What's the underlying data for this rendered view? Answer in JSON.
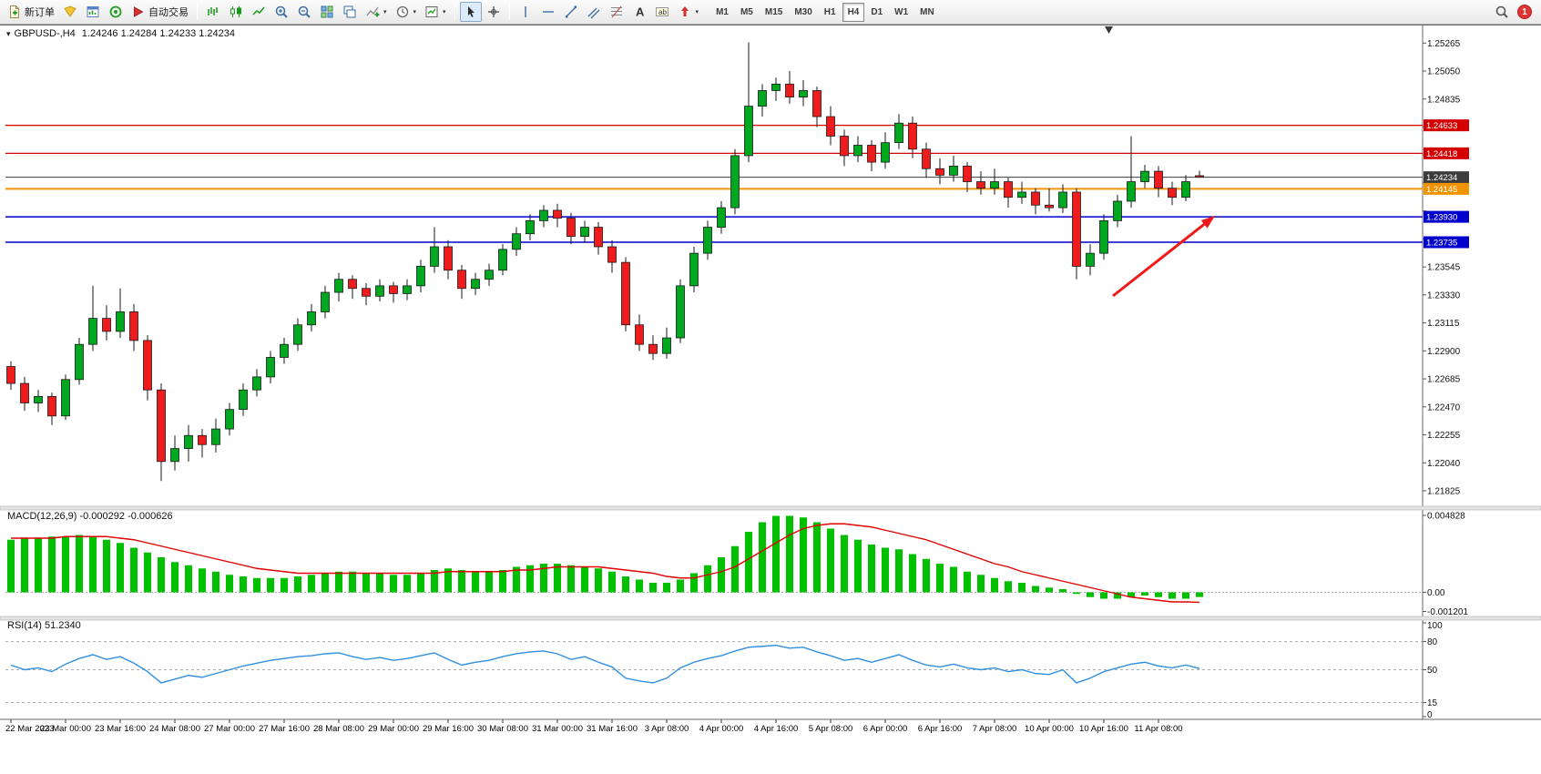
{
  "toolbar": {
    "new_order": "新订单",
    "auto_trading": "自动交易",
    "timeframes": [
      "M1",
      "M5",
      "M15",
      "M30",
      "H1",
      "H4",
      "D1",
      "W1",
      "MN"
    ],
    "active_timeframe": "H4",
    "notification_count": "1",
    "icons": [
      "new-order-icon",
      "metaeditor-icon",
      "market-watch-icon",
      "experts-icon",
      "autotrading-icon",
      "bars-chart-icon",
      "candles-chart-icon",
      "line-chart-icon",
      "zoom-in-icon",
      "zoom-out-icon",
      "tile-windows-icon",
      "cascade-windows-icon",
      "indicators-icon",
      "periods-icon",
      "templates-icon",
      "cursor-icon",
      "crosshair-icon",
      "vertical-line-icon",
      "horizontal-line-icon",
      "trendline-icon",
      "channel-icon",
      "fibonacci-icon",
      "text-icon",
      "label-icon",
      "arrows-icon",
      "search-icon"
    ]
  },
  "chart": {
    "symbol_period": "GBPUSD-,H4",
    "ohlc": "1.24246 1.24284 1.24233 1.24234"
  },
  "indicators": {
    "macd_label": "MACD(12,26,9) -0.000292 -0.000626",
    "rsi_label": "RSI(14) 51.2340"
  },
  "chart_data": {
    "type": "candlestick",
    "symbol": "GBPUSD-",
    "timeframe": "H4",
    "colors": {
      "up": "#00a820",
      "down": "#ee1c1c",
      "wick": "#1a1a1a",
      "macd_hist": "#00c000",
      "macd_signal": "#e00000",
      "rsi": "#2f8fe0",
      "line_red": "#d40000",
      "line_blue": "#0000cd",
      "line_orange": "#f29400",
      "line_bid": "#3c3c3c",
      "arrow": "#f01818"
    },
    "price_axis": {
      "min": 1.2172,
      "max": 1.254,
      "labels": [
        1.25265,
        1.2505,
        1.24835,
        1.2462,
        1.24405,
        1.2419,
        1.23975,
        1.2376,
        1.23545,
        1.2333,
        1.23115,
        1.229,
        1.22685,
        1.2247,
        1.22255,
        1.2204,
        1.21825
      ]
    },
    "h_lines": [
      {
        "value": 1.24633,
        "color": "#d40000",
        "style": "solid",
        "width": 1.3,
        "label": "1.24633"
      },
      {
        "value": 1.24418,
        "color": "#d40000",
        "style": "solid",
        "width": 1.3,
        "label": "1.24418"
      },
      {
        "value": 1.24234,
        "color": "#3c3c3c",
        "style": "solid",
        "width": 1.0,
        "label": "1.24234"
      },
      {
        "value": 1.24145,
        "color": "#f29400",
        "style": "solid",
        "width": 2.0,
        "label": "1.24145"
      },
      {
        "value": 1.2393,
        "color": "#0000cd",
        "style": "solid",
        "width": 1.5,
        "label": "1.23930"
      },
      {
        "value": 1.23735,
        "color": "#0000cd",
        "style": "solid",
        "width": 1.5,
        "label": "1.23735"
      }
    ],
    "arrow": {
      "from": [
        1222,
        325
      ],
      "to": [
        1334,
        237
      ],
      "color": "#f01818"
    },
    "time_labels": [
      "22 Mar 2023",
      "23 Mar 00:00",
      "23 Mar 16:00",
      "24 Mar 08:00",
      "27 Mar 00:00",
      "27 Mar 16:00",
      "28 Mar 08:00",
      "29 Mar 00:00",
      "29 Mar 16:00",
      "30 Mar 08:00",
      "31 Mar 00:00",
      "31 Mar 16:00",
      "3 Apr 08:00",
      "4 Apr 00:00",
      "4 Apr 16:00",
      "5 Apr 08:00",
      "6 Apr 00:00",
      "6 Apr 16:00",
      "7 Apr 08:00",
      "10 Apr 00:00",
      "10 Apr 16:00",
      "11 Apr 08:00"
    ],
    "candles": [
      [
        1.2278,
        1.2282,
        1.226,
        1.2265
      ],
      [
        1.2265,
        1.227,
        1.2244,
        1.225
      ],
      [
        1.225,
        1.226,
        1.2243,
        1.2255
      ],
      [
        1.2255,
        1.2258,
        1.2233,
        1.224
      ],
      [
        1.224,
        1.2272,
        1.2237,
        1.2268
      ],
      [
        1.2268,
        1.23,
        1.2264,
        1.2295
      ],
      [
        1.2295,
        1.234,
        1.229,
        1.2315
      ],
      [
        1.2315,
        1.2325,
        1.2298,
        1.2305
      ],
      [
        1.2305,
        1.2338,
        1.23,
        1.232
      ],
      [
        1.232,
        1.2326,
        1.229,
        1.2298
      ],
      [
        1.2298,
        1.2302,
        1.2252,
        1.226
      ],
      [
        1.226,
        1.2265,
        1.219,
        1.2205
      ],
      [
        1.2205,
        1.2225,
        1.2198,
        1.2215
      ],
      [
        1.2215,
        1.2233,
        1.2205,
        1.2225
      ],
      [
        1.2225,
        1.223,
        1.2208,
        1.2218
      ],
      [
        1.2218,
        1.2238,
        1.2212,
        1.223
      ],
      [
        1.223,
        1.225,
        1.2225,
        1.2245
      ],
      [
        1.2245,
        1.2265,
        1.224,
        1.226
      ],
      [
        1.226,
        1.2276,
        1.2255,
        1.227
      ],
      [
        1.227,
        1.229,
        1.2265,
        1.2285
      ],
      [
        1.2285,
        1.23,
        1.228,
        1.2295
      ],
      [
        1.2295,
        1.2315,
        1.229,
        1.231
      ],
      [
        1.231,
        1.2326,
        1.2305,
        1.232
      ],
      [
        1.232,
        1.234,
        1.2315,
        1.2335
      ],
      [
        1.2335,
        1.235,
        1.2328,
        1.2345
      ],
      [
        1.2345,
        1.2348,
        1.233,
        1.2338
      ],
      [
        1.2338,
        1.2342,
        1.2325,
        1.2332
      ],
      [
        1.2332,
        1.2345,
        1.2328,
        1.234
      ],
      [
        1.234,
        1.2343,
        1.2327,
        1.2334
      ],
      [
        1.2334,
        1.2345,
        1.2329,
        1.234
      ],
      [
        1.234,
        1.236,
        1.2335,
        1.2355
      ],
      [
        1.2355,
        1.2385,
        1.235,
        1.237
      ],
      [
        1.237,
        1.2375,
        1.2345,
        1.2352
      ],
      [
        1.2352,
        1.2356,
        1.233,
        1.2338
      ],
      [
        1.2338,
        1.235,
        1.2333,
        1.2345
      ],
      [
        1.2345,
        1.2357,
        1.234,
        1.2352
      ],
      [
        1.2352,
        1.2372,
        1.2348,
        1.2368
      ],
      [
        1.2368,
        1.2385,
        1.2363,
        1.238
      ],
      [
        1.238,
        1.2395,
        1.2375,
        1.239
      ],
      [
        1.239,
        1.2402,
        1.2385,
        1.2398
      ],
      [
        1.2398,
        1.2403,
        1.2385,
        1.2392
      ],
      [
        1.2392,
        1.2396,
        1.2372,
        1.2378
      ],
      [
        1.2378,
        1.239,
        1.2373,
        1.2385
      ],
      [
        1.2385,
        1.2389,
        1.2364,
        1.237
      ],
      [
        1.237,
        1.2375,
        1.235,
        1.2358
      ],
      [
        1.2358,
        1.2362,
        1.2305,
        1.231
      ],
      [
        1.231,
        1.2318,
        1.229,
        1.2295
      ],
      [
        1.2295,
        1.2302,
        1.2283,
        1.2288
      ],
      [
        1.2288,
        1.2308,
        1.2284,
        1.23
      ],
      [
        1.23,
        1.2345,
        1.2296,
        1.234
      ],
      [
        1.234,
        1.237,
        1.2335,
        1.2365
      ],
      [
        1.2365,
        1.239,
        1.236,
        1.2385
      ],
      [
        1.2385,
        1.2405,
        1.238,
        1.24
      ],
      [
        1.24,
        1.2445,
        1.2395,
        1.244
      ],
      [
        1.244,
        1.2527,
        1.2435,
        1.2478
      ],
      [
        1.2478,
        1.2495,
        1.247,
        1.249
      ],
      [
        1.249,
        1.25,
        1.2482,
        1.2495
      ],
      [
        1.2495,
        1.2505,
        1.248,
        1.2485
      ],
      [
        1.2485,
        1.2498,
        1.2478,
        1.249
      ],
      [
        1.249,
        1.2493,
        1.2462,
        1.247
      ],
      [
        1.247,
        1.2478,
        1.2448,
        1.2455
      ],
      [
        1.2455,
        1.246,
        1.2432,
        1.244
      ],
      [
        1.244,
        1.2455,
        1.2435,
        1.2448
      ],
      [
        1.2448,
        1.2452,
        1.2428,
        1.2435
      ],
      [
        1.2435,
        1.2458,
        1.243,
        1.245
      ],
      [
        1.245,
        1.2472,
        1.2445,
        1.2465
      ],
      [
        1.2465,
        1.247,
        1.2438,
        1.2445
      ],
      [
        1.2445,
        1.245,
        1.2423,
        1.243
      ],
      [
        1.243,
        1.2438,
        1.2418,
        1.2425
      ],
      [
        1.2425,
        1.244,
        1.242,
        1.2432
      ],
      [
        1.2432,
        1.2435,
        1.2412,
        1.242
      ],
      [
        1.242,
        1.2428,
        1.241,
        1.2415
      ],
      [
        1.2415,
        1.243,
        1.241,
        1.242
      ],
      [
        1.242,
        1.2423,
        1.24,
        1.2408
      ],
      [
        1.2408,
        1.242,
        1.2403,
        1.2412
      ],
      [
        1.2412,
        1.2415,
        1.2395,
        1.2402
      ],
      [
        1.2402,
        1.2415,
        1.2397,
        1.24
      ],
      [
        1.24,
        1.2418,
        1.2396,
        1.2412
      ],
      [
        1.2412,
        1.2415,
        1.2345,
        1.2355
      ],
      [
        1.2355,
        1.2372,
        1.2348,
        1.2365
      ],
      [
        1.2365,
        1.2395,
        1.236,
        1.239
      ],
      [
        1.239,
        1.241,
        1.2385,
        1.2405
      ],
      [
        1.2405,
        1.2455,
        1.24,
        1.242
      ],
      [
        1.242,
        1.2433,
        1.2415,
        1.2428
      ],
      [
        1.2428,
        1.2432,
        1.2408,
        1.2415
      ],
      [
        1.2415,
        1.242,
        1.2402,
        1.2408
      ],
      [
        1.2408,
        1.2425,
        1.2405,
        1.242
      ],
      [
        1.24246,
        1.24284,
        1.24233,
        1.24234
      ]
    ],
    "macd": {
      "range": [
        -0.0014,
        0.005
      ],
      "axis_labels": [
        {
          "v": 0.004828,
          "t": "0.004828"
        },
        {
          "v": 0,
          "t": "0.00"
        },
        {
          "v": -0.001201,
          "t": "-0.001201"
        }
      ],
      "histogram": [
        0.0033,
        0.0034,
        0.0034,
        0.0035,
        0.0035,
        0.0036,
        0.0035,
        0.0033,
        0.0031,
        0.0028,
        0.0025,
        0.0022,
        0.0019,
        0.0017,
        0.0015,
        0.0013,
        0.0011,
        0.001,
        0.0009,
        0.0009,
        0.0009,
        0.001,
        0.0011,
        0.0012,
        0.0013,
        0.0013,
        0.0012,
        0.0012,
        0.0011,
        0.0011,
        0.0012,
        0.0014,
        0.0015,
        0.0014,
        0.0013,
        0.0013,
        0.0014,
        0.0016,
        0.0017,
        0.0018,
        0.0018,
        0.0017,
        0.0016,
        0.0015,
        0.0013,
        0.001,
        0.0008,
        0.0006,
        0.0006,
        0.0008,
        0.0012,
        0.0017,
        0.0022,
        0.0029,
        0.0038,
        0.0044,
        0.0048,
        0.0048,
        0.0047,
        0.0044,
        0.004,
        0.0036,
        0.0033,
        0.003,
        0.0028,
        0.0027,
        0.0024,
        0.0021,
        0.0018,
        0.0016,
        0.0013,
        0.0011,
        0.0009,
        0.0007,
        0.0006,
        0.0004,
        0.0003,
        0.0002,
        -0.0001,
        -0.0003,
        -0.0004,
        -0.0004,
        -0.0003,
        -0.0002,
        -0.0003,
        -0.0004,
        -0.0004,
        -0.000292
      ],
      "signal": [
        0.0034,
        0.0034,
        0.0034,
        0.0034,
        0.0035,
        0.0035,
        0.0035,
        0.0035,
        0.0034,
        0.0033,
        0.0031,
        0.0029,
        0.0027,
        0.0025,
        0.0023,
        0.0021,
        0.0019,
        0.0017,
        0.0015,
        0.0014,
        0.0013,
        0.0012,
        0.0012,
        0.0012,
        0.0012,
        0.0012,
        0.0012,
        0.0012,
        0.0012,
        0.0012,
        0.0012,
        0.0012,
        0.0013,
        0.0013,
        0.0013,
        0.0013,
        0.0013,
        0.0014,
        0.0014,
        0.0015,
        0.0016,
        0.0016,
        0.0016,
        0.0016,
        0.0015,
        0.0014,
        0.0013,
        0.0012,
        0.001,
        0.0009,
        0.0009,
        0.0011,
        0.0013,
        0.0016,
        0.0021,
        0.0026,
        0.0031,
        0.0036,
        0.004,
        0.0042,
        0.0043,
        0.0043,
        0.0042,
        0.0041,
        0.0039,
        0.0037,
        0.0035,
        0.0033,
        0.003,
        0.0027,
        0.0024,
        0.0021,
        0.0018,
        0.0016,
        0.0013,
        0.0011,
        0.0009,
        0.0007,
        0.0005,
        0.0003,
        0.0001,
        -0.0001,
        -0.0003,
        -0.0004,
        -0.0005,
        -0.0006,
        -0.0006,
        -0.000626
      ]
    },
    "rsi": {
      "range": [
        0,
        100
      ],
      "levels": [
        80,
        50,
        15
      ],
      "axis_labels": [
        {
          "v": 100,
          "t": "100"
        },
        {
          "v": 80,
          "t": "80"
        },
        {
          "v": 50,
          "t": "50"
        },
        {
          "v": 15,
          "t": "15"
        },
        {
          "v": 0,
          "t": "0"
        }
      ],
      "values": [
        55,
        50,
        52,
        48,
        56,
        62,
        66,
        61,
        64,
        57,
        48,
        36,
        40,
        44,
        42,
        46,
        50,
        54,
        57,
        60,
        62,
        64,
        65,
        67,
        68,
        64,
        61,
        63,
        60,
        62,
        65,
        68,
        61,
        55,
        58,
        60,
        64,
        67,
        69,
        70,
        67,
        61,
        64,
        58,
        53,
        41,
        38,
        36,
        41,
        52,
        58,
        62,
        65,
        70,
        74,
        75,
        76,
        73,
        74,
        69,
        65,
        60,
        62,
        58,
        62,
        66,
        60,
        55,
        53,
        56,
        52,
        50,
        52,
        48,
        50,
        46,
        45,
        50,
        36,
        41,
        48,
        52,
        56,
        58,
        54,
        52,
        55,
        51.234
      ]
    }
  }
}
